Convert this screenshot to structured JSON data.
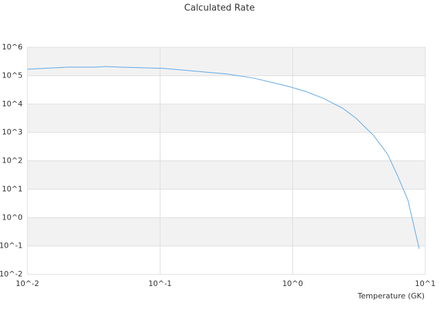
{
  "chart_data": {
    "type": "line",
    "title": "Calculated Rate",
    "x_label": "Temperature (GK)",
    "x_log": true,
    "y_log": true,
    "grid": true,
    "color": "#5aa5e6",
    "x": [
      0.01,
      0.016,
      0.02,
      0.033,
      0.039,
      0.05,
      0.108,
      0.2,
      0.32,
      0.51,
      0.93,
      1.25,
      1.7,
      2.4,
      3.0,
      4.1,
      5.2,
      6.2,
      7.4,
      9.0
    ],
    "values": [
      170000,
      190000,
      200000,
      200000,
      210000,
      200000,
      180000,
      140000,
      115000,
      82000,
      42000,
      28000,
      16000,
      7000,
      3200,
      760,
      170,
      29,
      4.1,
      0.079
    ],
    "xlim": [
      0.01,
      10
    ],
    "xticks": [
      {
        "value": 0.01,
        "label": "10^-2"
      },
      {
        "value": 0.1,
        "label": "10^-1"
      },
      {
        "value": 1,
        "label": "10^0"
      },
      {
        "value": 10,
        "label": "10^1"
      }
    ],
    "ylim": [
      0.01,
      1000000
    ],
    "yticks": [
      {
        "value": 0.01,
        "label": "10^-2"
      },
      {
        "value": 0.1,
        "label": "10^-1"
      },
      {
        "value": 1,
        "label": "10^0"
      },
      {
        "value": 10,
        "label": "10^1"
      },
      {
        "value": 100,
        "label": "10^2"
      },
      {
        "value": 1000,
        "label": "10^3"
      },
      {
        "value": 10000,
        "label": "10^4"
      },
      {
        "value": 100000,
        "label": "10^5"
      },
      {
        "value": 1000000,
        "label": "10^6"
      }
    ]
  }
}
